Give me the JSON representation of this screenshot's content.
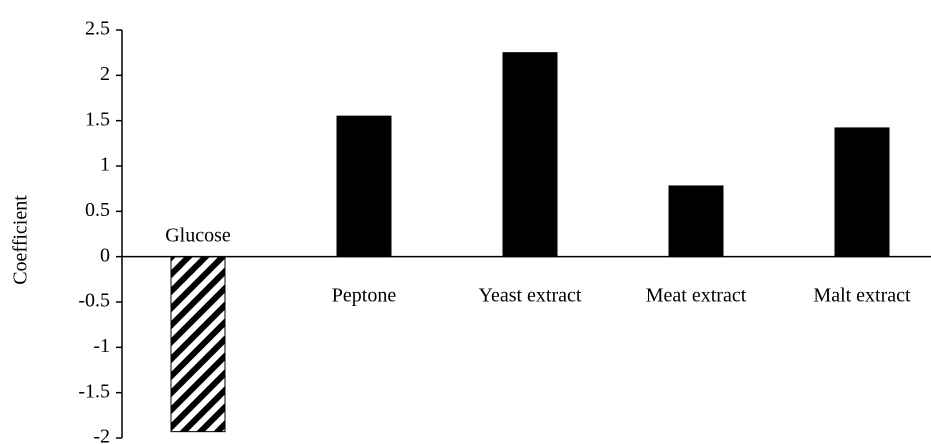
{
  "chart_data": {
    "type": "bar",
    "y_label": "Coefficient",
    "categories": [
      "Glucose",
      "Peptone",
      "Yeast extract",
      "Meat extract",
      "Malt extract"
    ],
    "values": [
      -1.93,
      1.55,
      2.25,
      0.78,
      1.42
    ],
    "color": "#000000",
    "ylim": [
      -2,
      2.5
    ],
    "yticks": [
      -2,
      -1.5,
      -1,
      -0.5,
      0,
      0.5,
      1,
      1.5,
      2,
      2.5
    ],
    "grid": false
  }
}
